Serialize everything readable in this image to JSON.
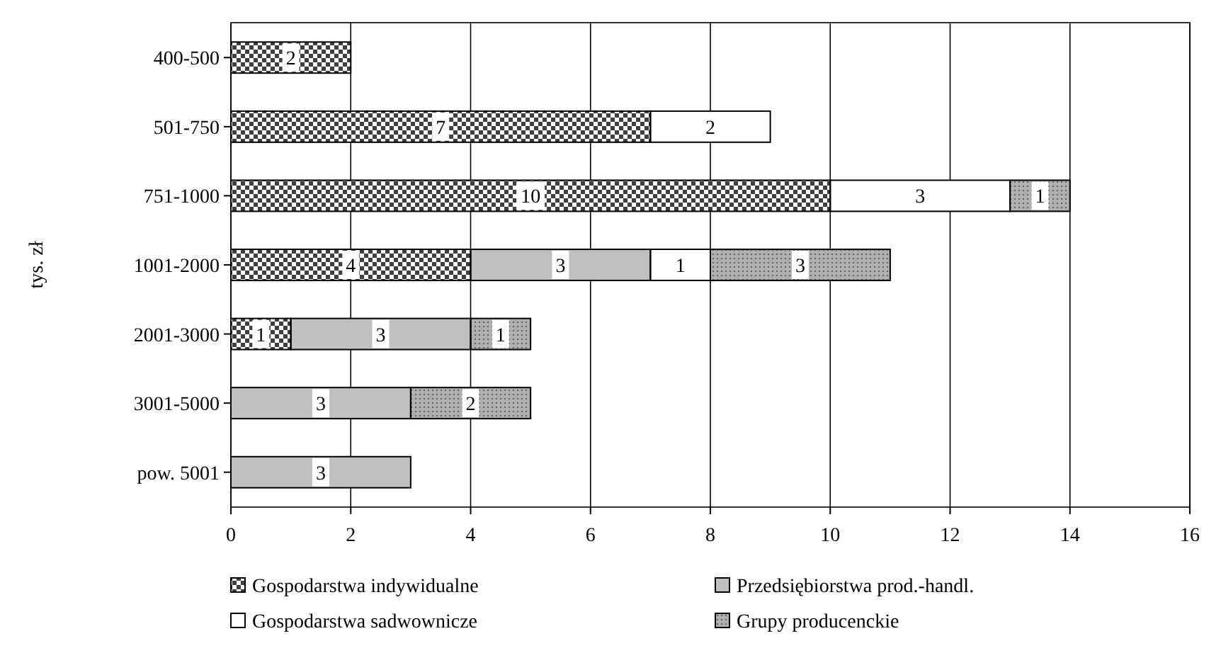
{
  "chart_data": {
    "type": "bar",
    "orientation": "horizontal",
    "stacked": true,
    "ylabel": "tys. zł",
    "categories": [
      "400-500",
      "501-750",
      "751-1000",
      "1001-2000",
      "2001-3000",
      "3001-5000",
      "pow. 5001"
    ],
    "series": [
      {
        "name": "Gospodarstwa indywidualne",
        "color": "#404040",
        "values": [
          2,
          7,
          10,
          4,
          1,
          null,
          null
        ]
      },
      {
        "name": "Przedsiębiorstwa prod.-handl.",
        "color": "#c0c0c0",
        "values": [
          null,
          null,
          null,
          3,
          3,
          3,
          3
        ]
      },
      {
        "name": "Gospodarstwa sadwownicze",
        "color": "#ffffff",
        "values": [
          null,
          2,
          3,
          1,
          null,
          null,
          null
        ]
      },
      {
        "name": "Grupy producenckie",
        "color": "#b0b0b0",
        "values": [
          null,
          null,
          1,
          3,
          1,
          2,
          null
        ]
      }
    ],
    "xlim": [
      0,
      16
    ],
    "xticks": [
      0,
      2,
      4,
      6,
      8,
      10,
      12,
      14,
      16
    ],
    "grid": "x",
    "legend": "bottom",
    "data_labels": true
  }
}
